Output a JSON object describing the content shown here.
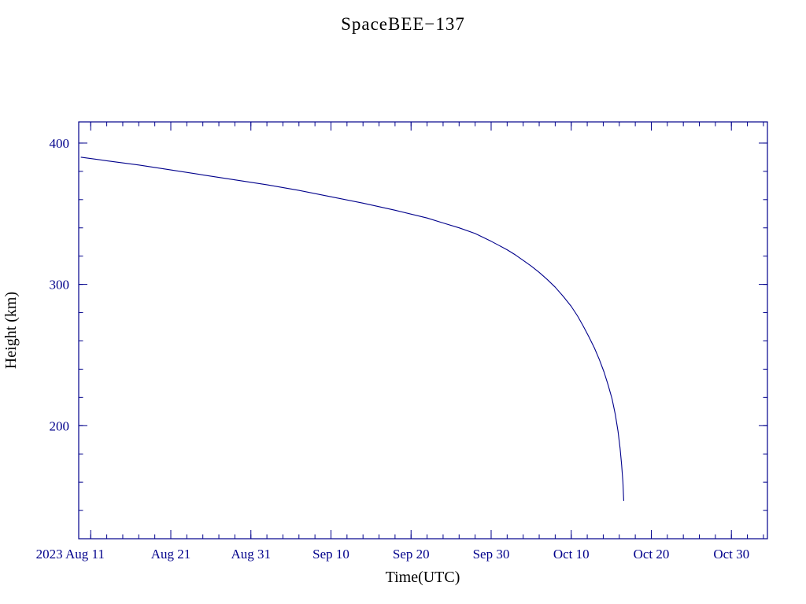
{
  "page": {
    "background": "#ffffff"
  },
  "chart_data": {
    "type": "line",
    "title": "SpaceBEE−137",
    "xlabel": "Time(UTC)",
    "ylabel": "Height (km)",
    "line_color": "#00008b",
    "text_color": "#00008b",
    "grid": false,
    "legend": "none",
    "x_axis": {
      "unit": "days since 2023 Aug 1",
      "domain": [
        8.5,
        94.5
      ],
      "minor_tick_step_days": 2,
      "ticks": [
        {
          "day": 10,
          "label": "2023 Aug 11",
          "dx": -26
        },
        {
          "day": 20,
          "label": "Aug 21",
          "dx": 0
        },
        {
          "day": 30,
          "label": "Aug 31",
          "dx": 0
        },
        {
          "day": 40,
          "label": "Sep 10",
          "dx": 0
        },
        {
          "day": 50,
          "label": "Sep 20",
          "dx": 0
        },
        {
          "day": 60,
          "label": "Sep 30",
          "dx": 0
        },
        {
          "day": 70,
          "label": "Oct 10",
          "dx": 0
        },
        {
          "day": 80,
          "label": "Oct 20",
          "dx": 0
        },
        {
          "day": 90,
          "label": "Oct 30",
          "dx": 0
        }
      ]
    },
    "y_axis": {
      "unit": "km",
      "domain": [
        120,
        415
      ],
      "minor_tick_step": 20,
      "ticks": [
        {
          "value": 200,
          "label": "200"
        },
        {
          "value": 300,
          "label": "300"
        },
        {
          "value": 400,
          "label": "400"
        }
      ]
    },
    "series": [
      {
        "name": "orbital-height-decay",
        "x_days": [
          8.8,
          12,
          16,
          20,
          24,
          28,
          32,
          36,
          40,
          44,
          48,
          52,
          54,
          56,
          58,
          60,
          61,
          62,
          63,
          64,
          65,
          66,
          67,
          68,
          69,
          70,
          70.8,
          71.5,
          72.2,
          72.9,
          73.5,
          74.1,
          74.6,
          75.1,
          75.5,
          75.85,
          76.1,
          76.3,
          76.45,
          76.55
        ],
        "y_km": [
          390,
          387.5,
          384.5,
          381,
          377.5,
          374,
          370.5,
          366.5,
          362,
          357.5,
          352.5,
          347,
          343.5,
          340,
          336,
          330.5,
          327.5,
          324.5,
          321,
          317,
          313,
          308.5,
          303.5,
          298,
          291.5,
          284.5,
          277.5,
          270.5,
          263,
          255,
          247,
          238,
          229,
          219,
          208,
          196,
          184,
          172,
          160,
          147
        ]
      }
    ]
  }
}
